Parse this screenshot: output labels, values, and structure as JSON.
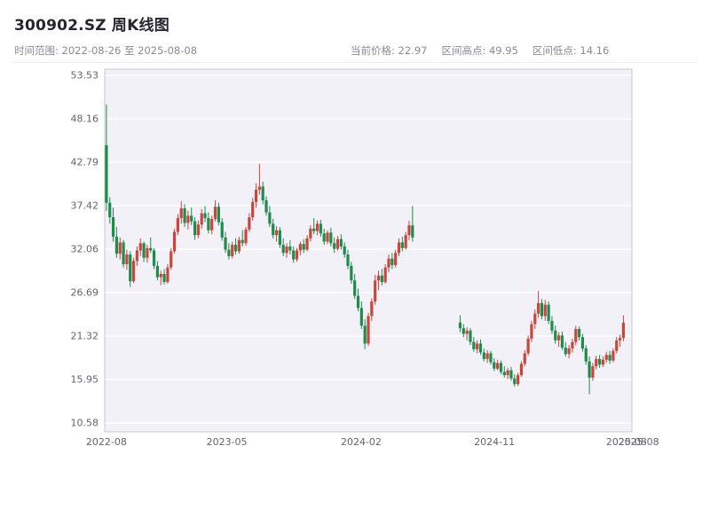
{
  "header": {
    "title": "300902.SZ 周K线图",
    "time_range": "时间范围: 2022-08-26 至 2025-08-08",
    "stats": [
      {
        "text": "当前价格: 22.97"
      },
      {
        "text": "区间高点: 49.95"
      },
      {
        "text": "区间低点: 14.16"
      }
    ]
  },
  "chart_data": {
    "type": "candlestick",
    "title": "300902.SZ 周K线图",
    "symbol": "300902.SZ",
    "period": "weekly",
    "start_date": "2022-08-26",
    "end_date": "2025-08-08",
    "current_price": 22.97,
    "range_high": 49.95,
    "range_low": 14.16,
    "x_range": [
      -0.5,
      154.5
    ],
    "x_axis": {
      "ticks": [
        {
          "t": 0,
          "label": "2022-08"
        },
        {
          "t": 35.4,
          "label": "2023-05"
        },
        {
          "t": 74.9,
          "label": "2024-02"
        },
        {
          "t": 114.1,
          "label": "2024-11"
        },
        {
          "t": 152.9,
          "label": "2025-08"
        },
        {
          "t": 156.5,
          "label": "2025-08"
        }
      ]
    },
    "y_axis": {
      "range": [
        9.5,
        54.3
      ],
      "ticks": [
        10.58,
        15.95,
        21.32,
        26.69,
        32.06,
        37.42,
        42.79,
        48.16,
        53.53
      ]
    },
    "colors": {
      "up": "#c9463c",
      "down": "#1f8b4d",
      "plot_bg": "#f1f1f7",
      "grid": "#ffffff",
      "border": "#c6c6d0",
      "tick_text": "#64646e"
    },
    "gap_weeks": [
      91,
      103
    ],
    "candles": [
      [
        0,
        44.9,
        49.95,
        36.8,
        37.8
      ],
      [
        1,
        37.8,
        38.5,
        35.2,
        36.0
      ],
      [
        2,
        36.0,
        37.2,
        33.0,
        33.6
      ],
      [
        3,
        33.6,
        34.8,
        31.0,
        31.5
      ],
      [
        4,
        31.5,
        33.5,
        30.8,
        32.9
      ],
      [
        5,
        32.9,
        33.2,
        29.8,
        30.2
      ],
      [
        6,
        30.2,
        32.0,
        29.5,
        31.4
      ],
      [
        7,
        31.4,
        31.8,
        27.4,
        28.1
      ],
      [
        8,
        28.1,
        31.0,
        27.9,
        30.6
      ],
      [
        9,
        30.6,
        32.4,
        30.0,
        31.9
      ],
      [
        10,
        31.9,
        33.4,
        31.2,
        32.8
      ],
      [
        11,
        32.8,
        33.0,
        30.5,
        31.0
      ],
      [
        12,
        31.0,
        32.6,
        30.4,
        32.2
      ],
      [
        13,
        32.2,
        33.5,
        31.6,
        31.9
      ],
      [
        14,
        31.9,
        32.2,
        29.6,
        30.0
      ],
      [
        15,
        30.0,
        30.6,
        28.2,
        28.6
      ],
      [
        16,
        28.6,
        29.4,
        27.6,
        29.0
      ],
      [
        17,
        29.0,
        29.6,
        27.7,
        28.0
      ],
      [
        18,
        28.0,
        30.2,
        27.8,
        29.8
      ],
      [
        19,
        29.8,
        32.2,
        29.5,
        31.8
      ],
      [
        20,
        31.8,
        34.6,
        31.5,
        34.2
      ],
      [
        21,
        34.2,
        36.4,
        33.8,
        35.9
      ],
      [
        22,
        35.9,
        38.0,
        35.2,
        37.1
      ],
      [
        23,
        37.1,
        37.6,
        34.8,
        35.3
      ],
      [
        24,
        35.3,
        36.8,
        34.5,
        36.2
      ],
      [
        25,
        36.2,
        37.2,
        35.0,
        35.5
      ],
      [
        26,
        35.5,
        36.0,
        33.2,
        33.8
      ],
      [
        27,
        33.8,
        35.6,
        33.4,
        35.1
      ],
      [
        28,
        35.1,
        37.0,
        34.6,
        36.5
      ],
      [
        29,
        36.5,
        37.4,
        35.4,
        35.9
      ],
      [
        30,
        35.9,
        36.6,
        34.0,
        34.4
      ],
      [
        31,
        34.4,
        36.2,
        33.9,
        35.8
      ],
      [
        32,
        35.8,
        38.1,
        35.5,
        37.3
      ],
      [
        33,
        37.3,
        37.8,
        35.0,
        35.4
      ],
      [
        34,
        35.4,
        35.9,
        33.1,
        33.5
      ],
      [
        35,
        33.5,
        34.2,
        31.6,
        32.0
      ],
      [
        36,
        32.0,
        32.8,
        30.8,
        31.2
      ],
      [
        37,
        31.2,
        33.0,
        30.9,
        32.6
      ],
      [
        38,
        32.6,
        33.4,
        31.4,
        31.8
      ],
      [
        39,
        31.8,
        33.6,
        31.5,
        33.2
      ],
      [
        40,
        33.2,
        34.4,
        32.4,
        32.8
      ],
      [
        41,
        32.8,
        34.8,
        32.5,
        34.5
      ],
      [
        42,
        34.5,
        36.5,
        34.2,
        36.0
      ],
      [
        43,
        36.0,
        38.4,
        35.6,
        37.9
      ],
      [
        44,
        37.9,
        40.2,
        37.2,
        39.4
      ],
      [
        45,
        39.4,
        42.62,
        38.8,
        39.8
      ],
      [
        46,
        39.8,
        40.4,
        37.6,
        38.1
      ],
      [
        47,
        38.1,
        38.6,
        36.2,
        36.6
      ],
      [
        48,
        36.6,
        37.4,
        34.8,
        35.2
      ],
      [
        49,
        35.2,
        35.8,
        33.4,
        33.8
      ],
      [
        50,
        33.8,
        34.9,
        33.0,
        34.4
      ],
      [
        51,
        34.4,
        34.8,
        32.2,
        32.6
      ],
      [
        52,
        32.6,
        33.4,
        31.2,
        31.6
      ],
      [
        53,
        31.6,
        32.8,
        31.0,
        32.4
      ],
      [
        54,
        32.4,
        33.2,
        31.4,
        31.9
      ],
      [
        55,
        31.9,
        32.4,
        30.4,
        30.8
      ],
      [
        56,
        30.8,
        32.2,
        30.5,
        31.9
      ],
      [
        57,
        31.9,
        33.0,
        31.3,
        32.7
      ],
      [
        58,
        32.7,
        33.3,
        31.6,
        32.0
      ],
      [
        59,
        32.0,
        33.8,
        31.8,
        33.4
      ],
      [
        60,
        33.4,
        35.0,
        33.0,
        34.6
      ],
      [
        61,
        34.6,
        35.9,
        33.9,
        34.3
      ],
      [
        62,
        34.3,
        35.6,
        33.8,
        35.2
      ],
      [
        63,
        35.2,
        35.7,
        33.6,
        34.0
      ],
      [
        64,
        34.0,
        34.6,
        32.6,
        33.0
      ],
      [
        65,
        33.0,
        34.4,
        32.7,
        34.1
      ],
      [
        66,
        34.1,
        34.7,
        32.4,
        32.8
      ],
      [
        67,
        32.8,
        33.5,
        31.6,
        32.1
      ],
      [
        68,
        32.1,
        33.7,
        31.9,
        33.3
      ],
      [
        69,
        33.3,
        33.9,
        32.0,
        32.4
      ],
      [
        70,
        32.4,
        32.9,
        31.0,
        31.4
      ],
      [
        71,
        31.4,
        32.0,
        29.6,
        30.0
      ],
      [
        72,
        30.0,
        30.5,
        27.8,
        28.2
      ],
      [
        73,
        28.2,
        29.0,
        25.9,
        26.3
      ],
      [
        74,
        26.3,
        27.2,
        24.4,
        24.8
      ],
      [
        75,
        24.8,
        25.6,
        22.2,
        22.6
      ],
      [
        76,
        22.6,
        23.4,
        19.72,
        20.4
      ],
      [
        77,
        20.4,
        24.2,
        20.1,
        23.8
      ],
      [
        78,
        23.8,
        26.0,
        23.2,
        25.6
      ],
      [
        79,
        25.6,
        28.9,
        25.2,
        28.2
      ],
      [
        80,
        28.2,
        29.4,
        27.0,
        28.8
      ],
      [
        81,
        28.8,
        29.6,
        27.6,
        28.0
      ],
      [
        82,
        28.0,
        30.2,
        27.8,
        29.8
      ],
      [
        83,
        29.8,
        31.4,
        29.2,
        30.9
      ],
      [
        84,
        30.9,
        31.6,
        29.6,
        30.1
      ],
      [
        85,
        30.1,
        32.0,
        29.8,
        31.6
      ],
      [
        86,
        31.6,
        33.4,
        31.2,
        32.9
      ],
      [
        87,
        32.9,
        33.6,
        31.8,
        32.2
      ],
      [
        88,
        32.2,
        34.2,
        32.0,
        33.8
      ],
      [
        89,
        33.8,
        35.6,
        33.2,
        35.0
      ],
      [
        90,
        35.0,
        37.42,
        33.0,
        33.5
      ],
      [
        104,
        23.0,
        23.9,
        21.8,
        22.3
      ],
      [
        105,
        22.3,
        22.8,
        21.2,
        21.6
      ],
      [
        106,
        21.6,
        22.4,
        20.8,
        22.0
      ],
      [
        107,
        22.0,
        22.3,
        20.2,
        20.6
      ],
      [
        108,
        20.6,
        21.2,
        19.4,
        19.7
      ],
      [
        109,
        19.7,
        20.8,
        19.2,
        20.4
      ],
      [
        110,
        20.4,
        20.9,
        19.0,
        19.3
      ],
      [
        111,
        19.3,
        19.8,
        18.2,
        18.5
      ],
      [
        112,
        18.5,
        19.6,
        18.0,
        19.2
      ],
      [
        113,
        19.2,
        19.5,
        17.8,
        18.1
      ],
      [
        114,
        18.1,
        18.6,
        17.0,
        17.3
      ],
      [
        115,
        17.3,
        18.4,
        17.1,
        18.0
      ],
      [
        116,
        18.0,
        18.3,
        16.6,
        16.9
      ],
      [
        117,
        16.9,
        17.6,
        16.2,
        16.5
      ],
      [
        118,
        16.5,
        17.4,
        16.0,
        17.1
      ],
      [
        119,
        17.1,
        17.5,
        15.8,
        16.1
      ],
      [
        120,
        16.1,
        16.6,
        15.1,
        15.4
      ],
      [
        121,
        15.4,
        16.8,
        15.2,
        16.5
      ],
      [
        122,
        16.5,
        18.2,
        16.3,
        17.9
      ],
      [
        123,
        17.9,
        19.6,
        17.6,
        19.2
      ],
      [
        124,
        19.2,
        21.4,
        18.9,
        21.0
      ],
      [
        125,
        21.0,
        23.2,
        20.6,
        22.8
      ],
      [
        126,
        22.8,
        24.6,
        22.2,
        24.1
      ],
      [
        127,
        24.1,
        26.9,
        23.6,
        25.4
      ],
      [
        128,
        25.4,
        25.9,
        23.4,
        23.8
      ],
      [
        129,
        23.8,
        25.8,
        23.2,
        25.2
      ],
      [
        130,
        25.2,
        25.6,
        22.8,
        23.2
      ],
      [
        131,
        23.2,
        23.8,
        21.6,
        22.0
      ],
      [
        132,
        22.0,
        22.6,
        20.4,
        20.8
      ],
      [
        133,
        20.8,
        21.8,
        20.0,
        21.4
      ],
      [
        134,
        21.4,
        21.9,
        19.6,
        19.9
      ],
      [
        135,
        19.9,
        20.6,
        18.8,
        19.1
      ],
      [
        136,
        19.1,
        20.2,
        18.6,
        19.8
      ],
      [
        137,
        19.8,
        21.0,
        19.3,
        20.6
      ],
      [
        138,
        20.6,
        22.6,
        20.2,
        22.2
      ],
      [
        139,
        22.2,
        22.5,
        20.8,
        21.2
      ],
      [
        140,
        21.2,
        21.6,
        19.4,
        19.8
      ],
      [
        141,
        19.8,
        20.2,
        17.8,
        18.2
      ],
      [
        142,
        18.2,
        18.8,
        14.16,
        16.2
      ],
      [
        143,
        16.2,
        18.0,
        15.8,
        17.6
      ],
      [
        144,
        17.6,
        18.9,
        17.2,
        18.5
      ],
      [
        145,
        18.5,
        19.0,
        17.4,
        17.8
      ],
      [
        146,
        17.8,
        18.8,
        17.5,
        18.4
      ],
      [
        147,
        18.4,
        19.4,
        18.0,
        19.0
      ],
      [
        148,
        19.0,
        19.5,
        17.9,
        18.3
      ],
      [
        149,
        18.3,
        19.8,
        18.1,
        19.5
      ],
      [
        150,
        19.5,
        21.2,
        19.2,
        20.8
      ],
      [
        151,
        20.8,
        21.5,
        20.0,
        21.1
      ],
      [
        152,
        21.1,
        23.9,
        20.7,
        22.97
      ]
    ]
  }
}
